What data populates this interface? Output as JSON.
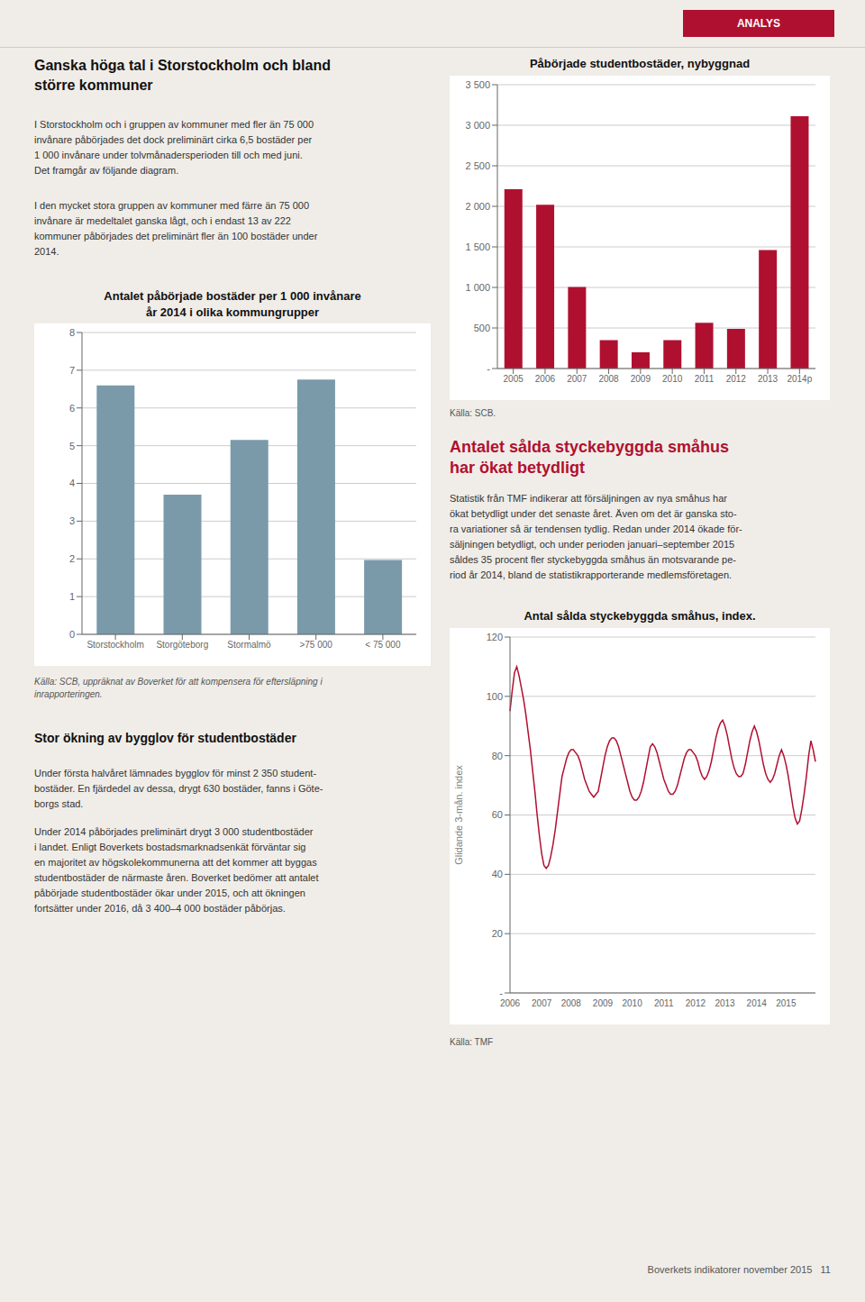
{
  "chart_data": [
    {
      "type": "bar",
      "title": "Antalet påbörjade bostäder per 1 000 invånare\når 2014 i olika kommungrupper",
      "categories": [
        "Storstockholm",
        "Storgöteborg",
        "Stormalmö",
        ">75 000",
        "< 75 000"
      ],
      "values": [
        6.6,
        3.7,
        5.15,
        6.75,
        1.97
      ],
      "color": "#7a9aaa",
      "ylim": [
        0,
        8
      ],
      "yticks": [
        0,
        1,
        2,
        3,
        4,
        5,
        6,
        7,
        8
      ],
      "grid": true,
      "annotations": [
        "ANALYS",
        "Ganska höga tal i Storstockholm och bland\nstörre kommuner",
        "I Storstockholm och i gruppen av kommuner med fler än 75 000\ninvånare påbörjades det dock preliminärt cirka 6,5 bostäder per\n1 000 invånare under tolvmånadersperioden till och med juni.\nDet framgår av följande diagram.",
        "I den mycket stora gruppen av kommuner med färre än 75 000\ninvånare är medeltalet ganska lågt, och i endast 13 av 222\nkommuner påbörjades det preliminärt fler än 100 bostäder under\n2014.",
        "Källa: SCB, uppräknat av Boverket för att kompensera för eftersläpning i\ninrapporteringen.",
        "Stor ökning av bygglov för studentbostäder",
        "Under första halvåret lämnades bygglov för minst 2 350 student-\nbostäder. En fjärdedel av dessa, drygt 630 bostäder, fanns i Göte-\nborgs stad.",
        "Under 2014 påbörjades preliminärt drygt 3 000 studentbostäder\ni landet. Enligt Boverkets bostadsmarknadsenkät förväntar sig\nen majoritet av högskolekommunerna att det kommer att byggas\nstudentbostäder de närmaste åren. Boverket bedömer att antalet\npåbörjade studentbostäder ökar under 2015, och att ökningen\nfortsätter under 2016, då 3 400–4 000 bostäder påbörjas.",
        "Boverkets indikatorer november 2015   11"
      ]
    },
    {
      "type": "bar",
      "title": "Påbörjade studentbostäder, nybyggnad",
      "categories": [
        "2005",
        "2006",
        "2007",
        "2008",
        "2009",
        "2010",
        "2011",
        "2012",
        "2013",
        "2014p"
      ],
      "values": [
        2210,
        2020,
        1005,
        350,
        200,
        350,
        565,
        490,
        1460,
        3110
      ],
      "color": "#b01030",
      "ylim": [
        0,
        3500
      ],
      "yticks": [
        {
          "value": 0,
          "label": "-"
        },
        500,
        {
          "value": 1000,
          "label": "1 000"
        },
        {
          "value": 1500,
          "label": "1 500"
        },
        {
          "value": 2000,
          "label": "2 000"
        },
        {
          "value": 2500,
          "label": "2 500"
        },
        {
          "value": 3000,
          "label": "3 000"
        },
        {
          "value": 3500,
          "label": "3 500"
        }
      ],
      "grid": true,
      "annotations": [
        "Källa: SCB."
      ]
    },
    {
      "type": "line",
      "title": "Antal sålda styckebyggda småhus, index.",
      "ylabel": "Glidande 3-mån. index",
      "categories": [
        "2006",
        null,
        null,
        null,
        null,
        null,
        null,
        null,
        null,
        null,
        null,
        null,
        null,
        null,
        "2007",
        null,
        null,
        null,
        null,
        null,
        null,
        null,
        null,
        null,
        null,
        null,
        null,
        "2008",
        null,
        null,
        null,
        null,
        null,
        null,
        null,
        null,
        null,
        null,
        null,
        null,
        null,
        "2009",
        null,
        null,
        null,
        null,
        null,
        null,
        null,
        null,
        null,
        null,
        null,
        null,
        "2010",
        null,
        null,
        null,
        null,
        null,
        null,
        null,
        null,
        null,
        null,
        null,
        null,
        null,
        "2011",
        null,
        null,
        null,
        null,
        null,
        null,
        null,
        null,
        null,
        null,
        null,
        null,
        null,
        "2012",
        null,
        null,
        null,
        null,
        null,
        null,
        null,
        null,
        null,
        null,
        null,
        null,
        "2013",
        null,
        null,
        null,
        null,
        null,
        null,
        null,
        null,
        null,
        null,
        null,
        null,
        null,
        "2014",
        null,
        null,
        null,
        null,
        null,
        null,
        null,
        null,
        null,
        null,
        null,
        null,
        "2015",
        null,
        null,
        null,
        null,
        null,
        null,
        null,
        null,
        null,
        null,
        null,
        null,
        null
      ],
      "values": [
        95,
        102,
        108,
        110,
        107,
        103,
        99,
        94,
        88,
        82,
        75,
        68,
        60,
        53,
        47,
        43,
        42,
        43,
        46,
        50,
        55,
        61,
        67,
        73,
        76,
        79,
        81,
        82,
        82,
        81,
        80,
        78,
        75,
        72,
        70,
        68,
        67,
        66,
        67,
        68,
        72,
        76,
        80,
        83,
        85,
        86,
        86,
        85,
        83,
        80,
        77,
        74,
        71,
        68,
        66,
        65,
        65,
        66,
        68,
        71,
        75,
        79,
        83,
        84,
        83,
        81,
        78,
        75,
        72,
        70,
        68,
        67,
        67,
        68,
        70,
        73,
        76,
        79,
        81,
        82,
        82,
        81,
        80,
        78,
        75,
        73,
        72,
        73,
        75,
        78,
        82,
        86,
        89,
        91,
        92,
        90,
        87,
        83,
        79,
        76,
        74,
        73,
        73,
        74,
        77,
        81,
        85,
        88,
        90,
        88,
        85,
        81,
        77,
        74,
        72,
        71,
        72,
        74,
        77,
        80,
        82,
        80,
        77,
        73,
        68,
        63,
        59,
        57,
        58,
        62,
        67,
        73,
        80,
        85,
        82,
        78
      ],
      "color": "#b01030",
      "ylim": [
        0,
        120
      ],
      "yticks": [
        {
          "value": 0,
          "label": "-"
        },
        20,
        40,
        60,
        80,
        100,
        120
      ],
      "grid": true,
      "annotations": [
        "Antalet sålda styckebyggda småhus\nhar ökat betydligt",
        "Statistik från TMF indikerar att försäljningen av nya småhus har\nökat betydligt under det senaste året. Även om det är ganska sto-\nra variationer så är tendensen tydlig. Redan under 2014 ökade för-\nsäljningen betydligt, och under perioden januari–september 2015\nsåldes 35 procent fler styckebyggda småhus än motsvarande pe-\nriod år 2014, bland de statistikrapporterande medlemsföretagen.",
        "Källa: TMF"
      ]
    }
  ]
}
